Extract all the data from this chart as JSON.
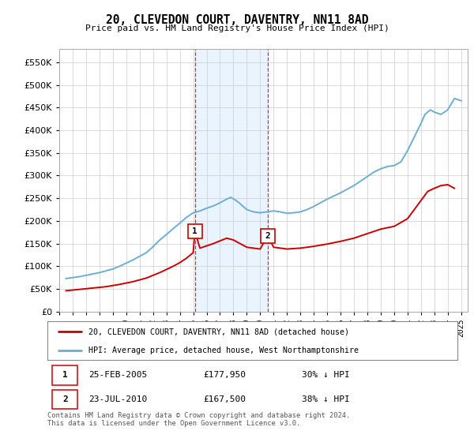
{
  "title": "20, CLEVEDON COURT, DAVENTRY, NN11 8AD",
  "subtitle": "Price paid vs. HM Land Registry's House Price Index (HPI)",
  "ylim": [
    0,
    580000
  ],
  "yticks": [
    0,
    50000,
    100000,
    150000,
    200000,
    250000,
    300000,
    350000,
    400000,
    450000,
    500000,
    550000
  ],
  "hpi_color": "#6baed6",
  "sold_color": "#cc0000",
  "marker1_x": 2005.12,
  "marker2_x": 2010.55,
  "marker1_y": 177950,
  "marker2_y": 167500,
  "marker1_label": "1",
  "marker2_label": "2",
  "sold_date1": "25-FEB-2005",
  "sold_price1": "£177,950",
  "sold_pct1": "30% ↓ HPI",
  "sold_date2": "23-JUL-2010",
  "sold_price2": "£167,500",
  "sold_pct2": "38% ↓ HPI",
  "legend_line1": "20, CLEVEDON COURT, DAVENTRY, NN11 8AD (detached house)",
  "legend_line2": "HPI: Average price, detached house, West Northamptonshire",
  "footer": "Contains HM Land Registry data © Crown copyright and database right 2024.\nThis data is licensed under the Open Government Licence v3.0.",
  "background_color": "#ffffff",
  "grid_color": "#cccccc",
  "shaded_color": "#ddeeff",
  "xlim_left": 1995.0,
  "xlim_right": 2025.5
}
